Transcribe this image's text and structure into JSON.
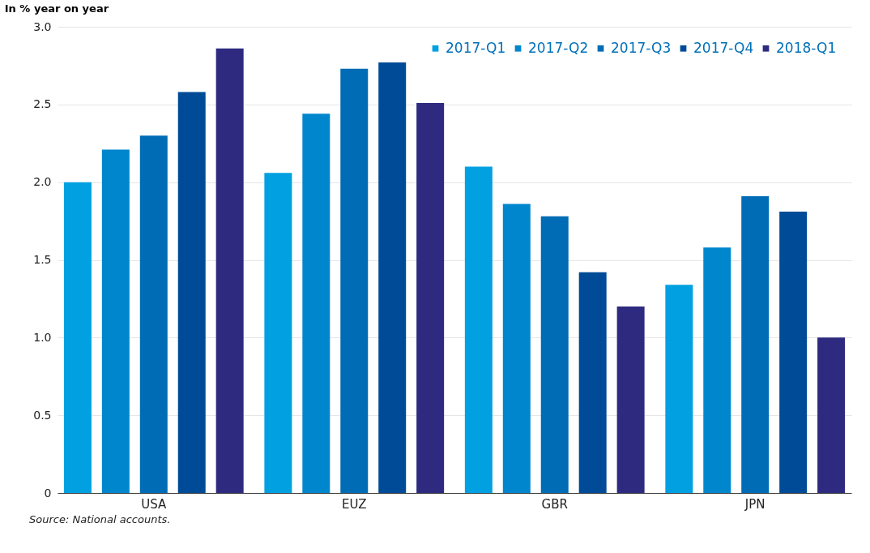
{
  "chart_data": {
    "type": "bar",
    "ylabel": "In % year on year",
    "categories": [
      "USA",
      "EUZ",
      "GBR",
      "JPN"
    ],
    "series": [
      {
        "name": "2017-Q1",
        "color": "#00a0e1",
        "values": [
          2.0,
          2.06,
          2.1,
          1.34
        ]
      },
      {
        "name": "2017-Q2",
        "color": "#0086cd",
        "values": [
          2.21,
          2.44,
          1.86,
          1.58
        ]
      },
      {
        "name": "2017-Q3",
        "color": "#006cb5",
        "values": [
          2.3,
          2.73,
          1.78,
          1.91
        ]
      },
      {
        "name": "2017-Q4",
        "color": "#004b97",
        "values": [
          2.58,
          2.77,
          1.42,
          1.81
        ]
      },
      {
        "name": "2018-Q1",
        "color": "#2e2a7f",
        "values": [
          2.86,
          2.51,
          1.2,
          1.0
        ]
      }
    ],
    "ylim": [
      0,
      3
    ],
    "yticks": [
      0,
      0.5,
      {
        "value": 1,
        "label": "1.0"
      },
      1.5,
      {
        "value": 2,
        "label": "2.0"
      },
      2.5,
      {
        "value": 3,
        "label": "3.0"
      }
    ],
    "grid": "y",
    "legend": "top right",
    "annotations": [
      "Source: National accounts."
    ]
  }
}
